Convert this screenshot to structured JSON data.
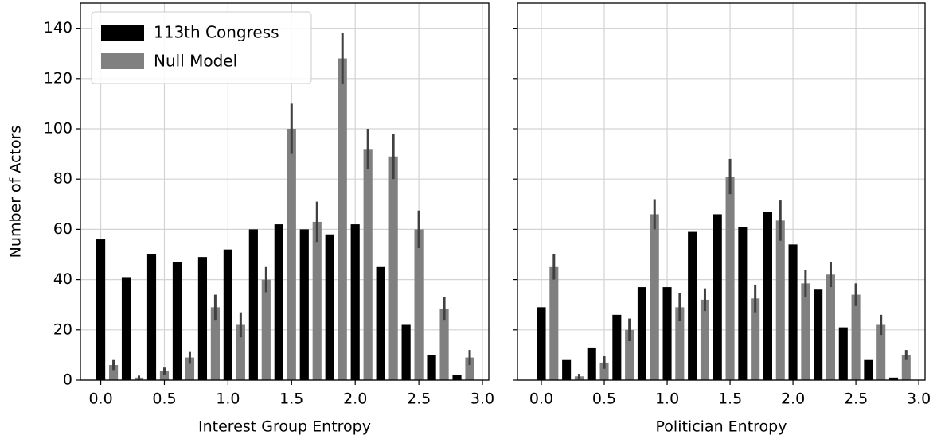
{
  "chart_data": [
    {
      "type": "bar",
      "xlabel": "Interest Group Entropy",
      "ylabel": "Number of Actors",
      "xlim": [
        -0.16,
        3.05
      ],
      "ylim": [
        0,
        150
      ],
      "xticks": [
        {
          "value": 0,
          "label": "0.0"
        },
        0.5,
        {
          "value": 1,
          "label": "1.0"
        },
        1.5,
        {
          "value": 2,
          "label": "2.0"
        },
        2.5,
        {
          "value": 3,
          "label": "3.0"
        }
      ],
      "yticks": [
        0,
        20,
        40,
        60,
        80,
        100,
        120,
        140
      ],
      "ytick_labels": true,
      "grid": true,
      "legend": "upper left",
      "series": [
        {
          "name": "113th Congress",
          "color": "#000000",
          "x": [
            0,
            0.2,
            0.4,
            0.6,
            0.8,
            1.0,
            1.2,
            1.4,
            1.6,
            1.8,
            2.0,
            2.2,
            2.4,
            2.6,
            2.8
          ],
          "values": [
            56,
            41,
            50,
            47,
            49,
            52,
            60,
            62,
            60,
            58,
            62,
            45,
            22,
            10,
            2
          ]
        },
        {
          "name": "Null Model",
          "color": "#808080",
          "x": [
            0.1,
            0.3,
            0.5,
            0.7,
            0.9,
            1.1,
            1.3,
            1.5,
            1.7,
            1.9,
            2.1,
            2.3,
            2.5,
            2.7,
            2.9
          ],
          "values": [
            6,
            1,
            3.5,
            9,
            29,
            22,
            40,
            100,
            63,
            128,
            92,
            89,
            60,
            28.5,
            9
          ],
          "errors": [
            2,
            0.8,
            1.5,
            2.5,
            5,
            5,
            5,
            10,
            8,
            10,
            8,
            9,
            7.5,
            4.5,
            3
          ]
        }
      ]
    },
    {
      "type": "bar",
      "xlabel": "Politician Entropy",
      "xlim": [
        -0.19,
        3.05
      ],
      "ylim": [
        0,
        150
      ],
      "xticks": [
        {
          "value": 0,
          "label": "0.0"
        },
        0.5,
        {
          "value": 1,
          "label": "1.0"
        },
        1.5,
        {
          "value": 2,
          "label": "2.0"
        },
        2.5,
        {
          "value": 3,
          "label": "3.0"
        }
      ],
      "yticks": [
        0,
        20,
        40,
        60,
        80,
        100,
        120,
        140
      ],
      "ytick_labels": false,
      "grid": true,
      "series": [
        {
          "color": "#000000",
          "x": [
            0,
            0.2,
            0.4,
            0.6,
            0.8,
            1.0,
            1.2,
            1.4,
            1.6,
            1.8,
            2.0,
            2.2,
            2.4,
            2.6,
            2.8
          ],
          "values": [
            29,
            8,
            13,
            26,
            37,
            37,
            59,
            66,
            61,
            67,
            54,
            36,
            21,
            8,
            1
          ]
        },
        {
          "color": "#808080",
          "x": [
            0.1,
            0.3,
            0.5,
            0.7,
            0.9,
            1.1,
            1.3,
            1.5,
            1.7,
            1.9,
            2.1,
            2.3,
            2.5,
            2.7,
            2.9
          ],
          "values": [
            45,
            1.5,
            7,
            20,
            66,
            29,
            32,
            81,
            32.5,
            63.5,
            38.5,
            42,
            34,
            22,
            10
          ],
          "errors": [
            5,
            1,
            2.5,
            4.5,
            6,
            5.5,
            4.5,
            7,
            5.5,
            8,
            5.5,
            5,
            4.5,
            4,
            2
          ]
        }
      ]
    }
  ]
}
